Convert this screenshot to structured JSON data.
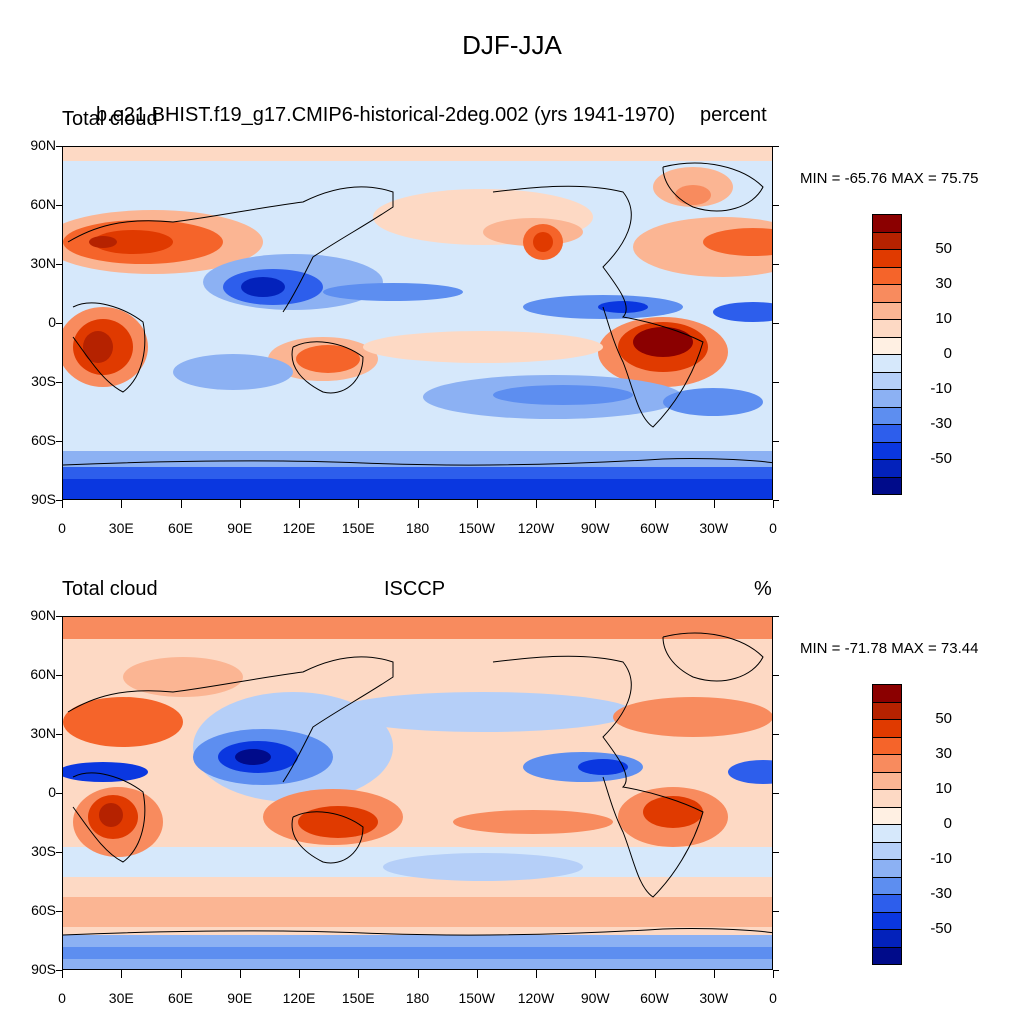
{
  "title": "DJF-JJA",
  "panels": [
    {
      "left_label": "Total cloud",
      "center_label": "b.e21.BHIST.f19_g17.CMIP6-historical-2deg.002 (yrs 1941-1970)",
      "right_label": "percent",
      "minmax": "MIN = -65.76 MAX =  75.75"
    },
    {
      "left_label": "Total cloud",
      "center_label": "ISCCP",
      "right_label": "%",
      "minmax": "MIN = -71.78 MAX =  73.44"
    }
  ],
  "lat_labels": [
    "90N",
    "60N",
    "30N",
    "0",
    "30S",
    "60S",
    "90S"
  ],
  "lon_labels": [
    "0",
    "30E",
    "60E",
    "90E",
    "120E",
    "150E",
    "180",
    "150W",
    "120W",
    "90W",
    "60W",
    "30W",
    "0"
  ],
  "colorbar": {
    "labels": [
      "50",
      "30",
      "10",
      "0",
      "-10",
      "-30",
      "-50"
    ],
    "colors": [
      "#8b0000",
      "#b52200",
      "#e03a00",
      "#f5642a",
      "#f88b5e",
      "#fbb593",
      "#fdd9c4",
      "#fff0e3",
      "#d6e8fb",
      "#b5cff8",
      "#8cb1f3",
      "#5d8ef0",
      "#2d5eec",
      "#0a37e0",
      "#0322bb",
      "#000b8a"
    ]
  }
}
